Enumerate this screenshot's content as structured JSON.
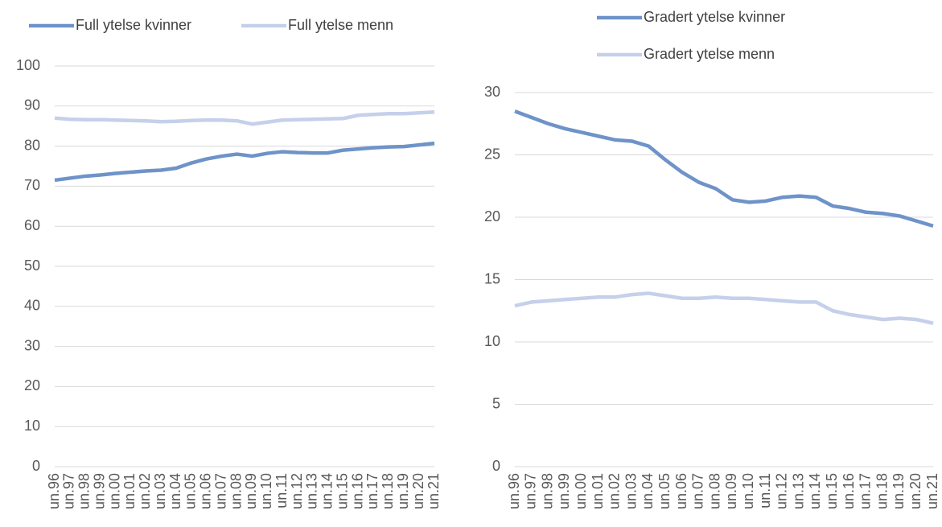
{
  "chart_data": [
    {
      "type": "line",
      "categories": [
        "un.96",
        "un.97",
        "un.98",
        "un.99",
        "un.00",
        "un.01",
        "un.02",
        "un.03",
        "un.04",
        "un.05",
        "un.06",
        "un.07",
        "un.08",
        "un.09",
        "un.10",
        "un.11",
        "un.12",
        "un.13",
        "un.14",
        "un.15",
        "un.16",
        "un.17",
        "un.18",
        "un.19",
        "un.20",
        "un.21"
      ],
      "series": [
        {
          "name": "Full ytelse kvinner",
          "color": "#6e93c8",
          "values": [
            71.5,
            72,
            72.5,
            72.8,
            73.2,
            73.5,
            73.8,
            74,
            74.5,
            75.8,
            76.8,
            77.5,
            78,
            77.5,
            78.2,
            78.6,
            78.4,
            78.3,
            78.3,
            79,
            79.3,
            79.6,
            79.8,
            79.9,
            80.3,
            80.7
          ]
        },
        {
          "name": "Full ytelse menn",
          "color": "#c5d0ea",
          "values": [
            87,
            86.7,
            86.6,
            86.6,
            86.5,
            86.4,
            86.3,
            86.1,
            86.2,
            86.4,
            86.5,
            86.5,
            86.3,
            85.5,
            86,
            86.5,
            86.6,
            86.7,
            86.8,
            86.9,
            87.7,
            87.9,
            88.1,
            88.1,
            88.3,
            88.5
          ]
        }
      ],
      "ylim": [
        0,
        100
      ],
      "yticks": [
        0,
        10,
        20,
        30,
        40,
        50,
        60,
        70,
        80,
        90,
        100
      ],
      "grid": true,
      "legend": "top"
    },
    {
      "type": "line",
      "categories": [
        "un.96",
        "un.97",
        "un.98",
        "un.99",
        "un.00",
        "un.01",
        "un.02",
        "un.03",
        "un.04",
        "un.05",
        "un.06",
        "un.07",
        "un.08",
        "un.09",
        "un.10",
        "un.11",
        "un.12",
        "un.13",
        "un.14",
        "un.15",
        "un.16",
        "un.17",
        "un.18",
        "un.19",
        "un.20",
        "un.21"
      ],
      "series": [
        {
          "name": "Gradert ytelse kvinner",
          "color": "#6e93c8",
          "values": [
            28.5,
            28,
            27.5,
            27.1,
            26.8,
            26.5,
            26.2,
            26.1,
            25.7,
            24.6,
            23.6,
            22.8,
            22.3,
            21.4,
            21.2,
            21.3,
            21.6,
            21.7,
            21.6,
            20.9,
            20.7,
            20.4,
            20.3,
            20.1,
            19.7,
            19.3
          ]
        },
        {
          "name": "Gradert ytelse menn",
          "color": "#c5d0ea",
          "values": [
            12.9,
            13.2,
            13.3,
            13.4,
            13.5,
            13.6,
            13.6,
            13.8,
            13.9,
            13.7,
            13.5,
            13.5,
            13.6,
            13.5,
            13.5,
            13.4,
            13.3,
            13.2,
            13.2,
            12.5,
            12.2,
            12,
            11.8,
            11.9,
            11.8,
            11.5
          ]
        }
      ],
      "ylim": [
        0,
        30
      ],
      "yticks": [
        0,
        5,
        10,
        15,
        20,
        25,
        30
      ],
      "grid": true,
      "legend": "top"
    }
  ]
}
